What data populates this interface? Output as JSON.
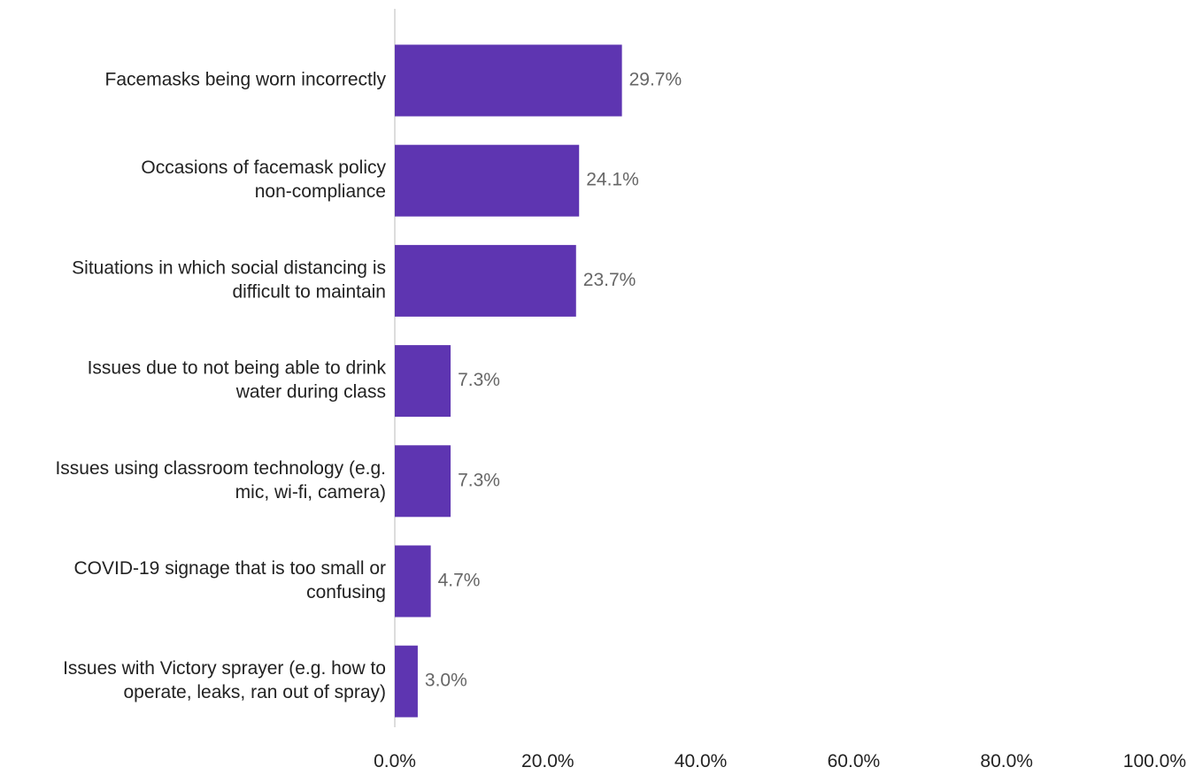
{
  "chart_data": {
    "type": "bar",
    "orientation": "horizontal",
    "categories": [
      [
        "Facemasks being worn incorrectly"
      ],
      [
        "Occasions of facemask policy",
        "non-compliance"
      ],
      [
        "Situations in which social distancing is",
        "difficult to maintain"
      ],
      [
        "Issues due to not being able to drink",
        "water during class"
      ],
      [
        "Issues using classroom technology (e.g.",
        "mic, wi-fi, camera)"
      ],
      [
        "COVID-19 signage that is too small or",
        "confusing"
      ],
      [
        "Issues with Victory sprayer (e.g. how to",
        "operate, leaks, ran out of spray)"
      ]
    ],
    "values": [
      29.7,
      24.1,
      23.7,
      7.3,
      7.3,
      4.7,
      3.0
    ],
    "value_labels": [
      "29.7%",
      "24.1%",
      "23.7%",
      "7.3%",
      "7.3%",
      "4.7%",
      "3.0%"
    ],
    "xlim": [
      0,
      100
    ],
    "xticks": [
      0,
      20,
      40,
      60,
      80,
      100
    ],
    "xtick_labels": [
      "0.0%",
      "20.0%",
      "40.0%",
      "60.0%",
      "80.0%",
      "100.0%"
    ],
    "grid": false,
    "legend": "none",
    "colors": {
      "bar": "#5e35b1",
      "axis_line": "#dddddd",
      "category_text": "#222222",
      "value_text": "#666666"
    }
  }
}
